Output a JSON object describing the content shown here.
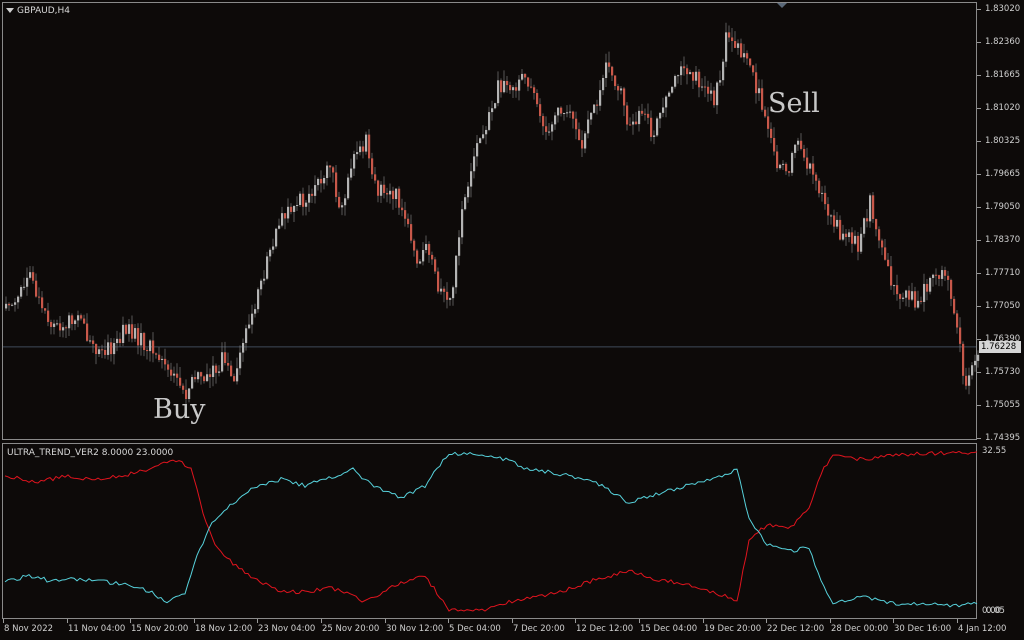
{
  "symbol_title": "GBPAUD,H4",
  "indicator_title": "ULTRA_TREND_VER2 8.0000 23.0000",
  "current_price": "1.76228",
  "annotations": {
    "buy": "Buy",
    "sell": "Sell"
  },
  "price_axis": [
    "1.83020",
    "1.82360",
    "1.81665",
    "1.81020",
    "1.80325",
    "1.79665",
    "1.79050",
    "1.78370",
    "1.77710",
    "1.77050",
    "1.76390",
    "1.75730",
    "1.75055",
    "1.74395"
  ],
  "indicator_axis": {
    "top": "32.55",
    "bottom_a": "0.00",
    "bottom_b": "0.05"
  },
  "time_axis": [
    "8 Nov 2022",
    "11 Nov 04:00",
    "15 Nov 20:00",
    "18 Nov 12:00",
    "23 Nov 04:00",
    "25 Nov 20:00",
    "30 Nov 12:00",
    "5 Dec 04:00",
    "7 Dec 20:00",
    "12 Dec 12:00",
    "15 Dec 04:00",
    "19 Dec 20:00",
    "22 Dec 12:00",
    "28 Dec 00:00",
    "30 Dec 16:00",
    "4 Jan 12:00"
  ],
  "colors": {
    "background": "#0d0a09",
    "bull_candle": "#b4b4b4",
    "bear_candle": "#c8584a",
    "indicator_red": "#e0141e",
    "indicator_cyan": "#57d2dc",
    "price_line": "#3f4a5a"
  },
  "chart_data": [
    {
      "type": "candlestick",
      "title": "GBPAUD,H4",
      "ylim": [
        1.74395,
        1.8302
      ],
      "close_path": [
        [
          0,
          1.77
        ],
        [
          8,
          1.776
        ],
        [
          16,
          1.766
        ],
        [
          24,
          1.768
        ],
        [
          32,
          1.76
        ],
        [
          40,
          1.766
        ],
        [
          48,
          1.762
        ],
        [
          56,
          1.757
        ],
        [
          60,
          1.752
        ],
        [
          64,
          1.757
        ],
        [
          68,
          1.756
        ],
        [
          72,
          1.76
        ],
        [
          76,
          1.757
        ],
        [
          80,
          1.765
        ],
        [
          84,
          1.773
        ],
        [
          88,
          1.781
        ],
        [
          92,
          1.788
        ],
        [
          96,
          1.792
        ],
        [
          100,
          1.791
        ],
        [
          104,
          1.795
        ],
        [
          108,
          1.798
        ],
        [
          112,
          1.79
        ],
        [
          116,
          1.8
        ],
        [
          120,
          1.804
        ],
        [
          124,
          1.793
        ],
        [
          128,
          1.794
        ],
        [
          132,
          1.791
        ],
        [
          136,
          1.78
        ],
        [
          140,
          1.782
        ],
        [
          144,
          1.775
        ],
        [
          148,
          1.771
        ],
        [
          152,
          1.79
        ],
        [
          156,
          1.802
        ],
        [
          160,
          1.806
        ],
        [
          164,
          1.815
        ],
        [
          168,
          1.813
        ],
        [
          172,
          1.818
        ],
        [
          176,
          1.812
        ],
        [
          180,
          1.806
        ],
        [
          184,
          1.81
        ],
        [
          188,
          1.809
        ],
        [
          192,
          1.803
        ],
        [
          196,
          1.81
        ],
        [
          200,
          1.818
        ],
        [
          204,
          1.815
        ],
        [
          208,
          1.806
        ],
        [
          212,
          1.809
        ],
        [
          216,
          1.805
        ],
        [
          220,
          1.814
        ],
        [
          224,
          1.818
        ],
        [
          228,
          1.816
        ],
        [
          232,
          1.816
        ],
        [
          236,
          1.811
        ],
        [
          240,
          1.824
        ],
        [
          244,
          1.822
        ],
        [
          248,
          1.819
        ],
        [
          252,
          1.811
        ],
        [
          256,
          1.8
        ],
        [
          260,
          1.797
        ],
        [
          264,
          1.804
        ],
        [
          268,
          1.798
        ],
        [
          272,
          1.792
        ],
        [
          276,
          1.787
        ],
        [
          280,
          1.784
        ],
        [
          284,
          1.783
        ],
        [
          288,
          1.791
        ],
        [
          292,
          1.781
        ],
        [
          296,
          1.773
        ],
        [
          300,
          1.774
        ],
        [
          304,
          1.771
        ],
        [
          308,
          1.776
        ],
        [
          312,
          1.778
        ],
        [
          316,
          1.77
        ],
        [
          320,
          1.753
        ],
        [
          324,
          1.762
        ]
      ]
    },
    {
      "type": "line",
      "title": "ULTRA_TREND_VER2 8.0000 23.0000",
      "ylim": [
        0,
        32.55
      ],
      "series": [
        {
          "name": "red",
          "color": "#e0141e",
          "points": [
            [
              0,
              27.5
            ],
            [
              10,
              26.2
            ],
            [
              20,
              27.4
            ],
            [
              30,
              26.8
            ],
            [
              40,
              27.6
            ],
            [
              48,
              28.8
            ],
            [
              56,
              31.0
            ],
            [
              62,
              29.0
            ],
            [
              66,
              20.0
            ],
            [
              70,
              13.5
            ],
            [
              76,
              9.5
            ],
            [
              84,
              6.2
            ],
            [
              92,
              4.0
            ],
            [
              100,
              3.8
            ],
            [
              108,
              4.8
            ],
            [
              116,
              3.2
            ],
            [
              120,
              1.8
            ],
            [
              126,
              4.0
            ],
            [
              132,
              5.6
            ],
            [
              140,
              7.2
            ],
            [
              148,
              0.1
            ],
            [
              160,
              0.1
            ],
            [
              168,
              1.8
            ],
            [
              176,
              3.0
            ],
            [
              184,
              3.6
            ],
            [
              196,
              6.2
            ],
            [
              208,
              8.2
            ],
            [
              216,
              6.5
            ],
            [
              224,
              5.8
            ],
            [
              232,
              4.6
            ],
            [
              240,
              3.0
            ],
            [
              244,
              2.0
            ],
            [
              248,
              14.5
            ],
            [
              254,
              17.5
            ],
            [
              262,
              17.0
            ],
            [
              268,
              21.0
            ],
            [
              272,
              28.0
            ],
            [
              276,
              31.8
            ],
            [
              286,
              30.8
            ],
            [
              296,
              31.8
            ],
            [
              316,
              32.2
            ]
          ]
        },
        {
          "name": "cyan",
          "color": "#57d2dc",
          "points": [
            [
              0,
              5.8
            ],
            [
              8,
              7.2
            ],
            [
              16,
              6.0
            ],
            [
              24,
              6.5
            ],
            [
              32,
              6.0
            ],
            [
              40,
              5.5
            ],
            [
              48,
              4.0
            ],
            [
              54,
              2.0
            ],
            [
              60,
              3.5
            ],
            [
              64,
              11.0
            ],
            [
              68,
              17.0
            ],
            [
              76,
              22.0
            ],
            [
              84,
              25.5
            ],
            [
              92,
              26.8
            ],
            [
              100,
              25.5
            ],
            [
              108,
              27.0
            ],
            [
              116,
              29.0
            ],
            [
              120,
              26.5
            ],
            [
              126,
              24.5
            ],
            [
              132,
              23.0
            ],
            [
              140,
              25.5
            ],
            [
              148,
              32.2
            ],
            [
              164,
              31.5
            ],
            [
              174,
              29.0
            ],
            [
              184,
              28.0
            ],
            [
              196,
              26.5
            ],
            [
              208,
              22.0
            ],
            [
              216,
              23.5
            ],
            [
              224,
              25.0
            ],
            [
              232,
              26.0
            ],
            [
              240,
              27.6
            ],
            [
              244,
              29.0
            ],
            [
              248,
              19.0
            ],
            [
              254,
              13.5
            ],
            [
              262,
              12.2
            ],
            [
              268,
              13.0
            ],
            [
              272,
              6.0
            ],
            [
              276,
              1.8
            ],
            [
              286,
              2.8
            ],
            [
              296,
              1.5
            ],
            [
              310,
              1.6
            ],
            [
              316,
              1.0
            ],
            [
              322,
              1.5
            ]
          ]
        }
      ]
    }
  ]
}
